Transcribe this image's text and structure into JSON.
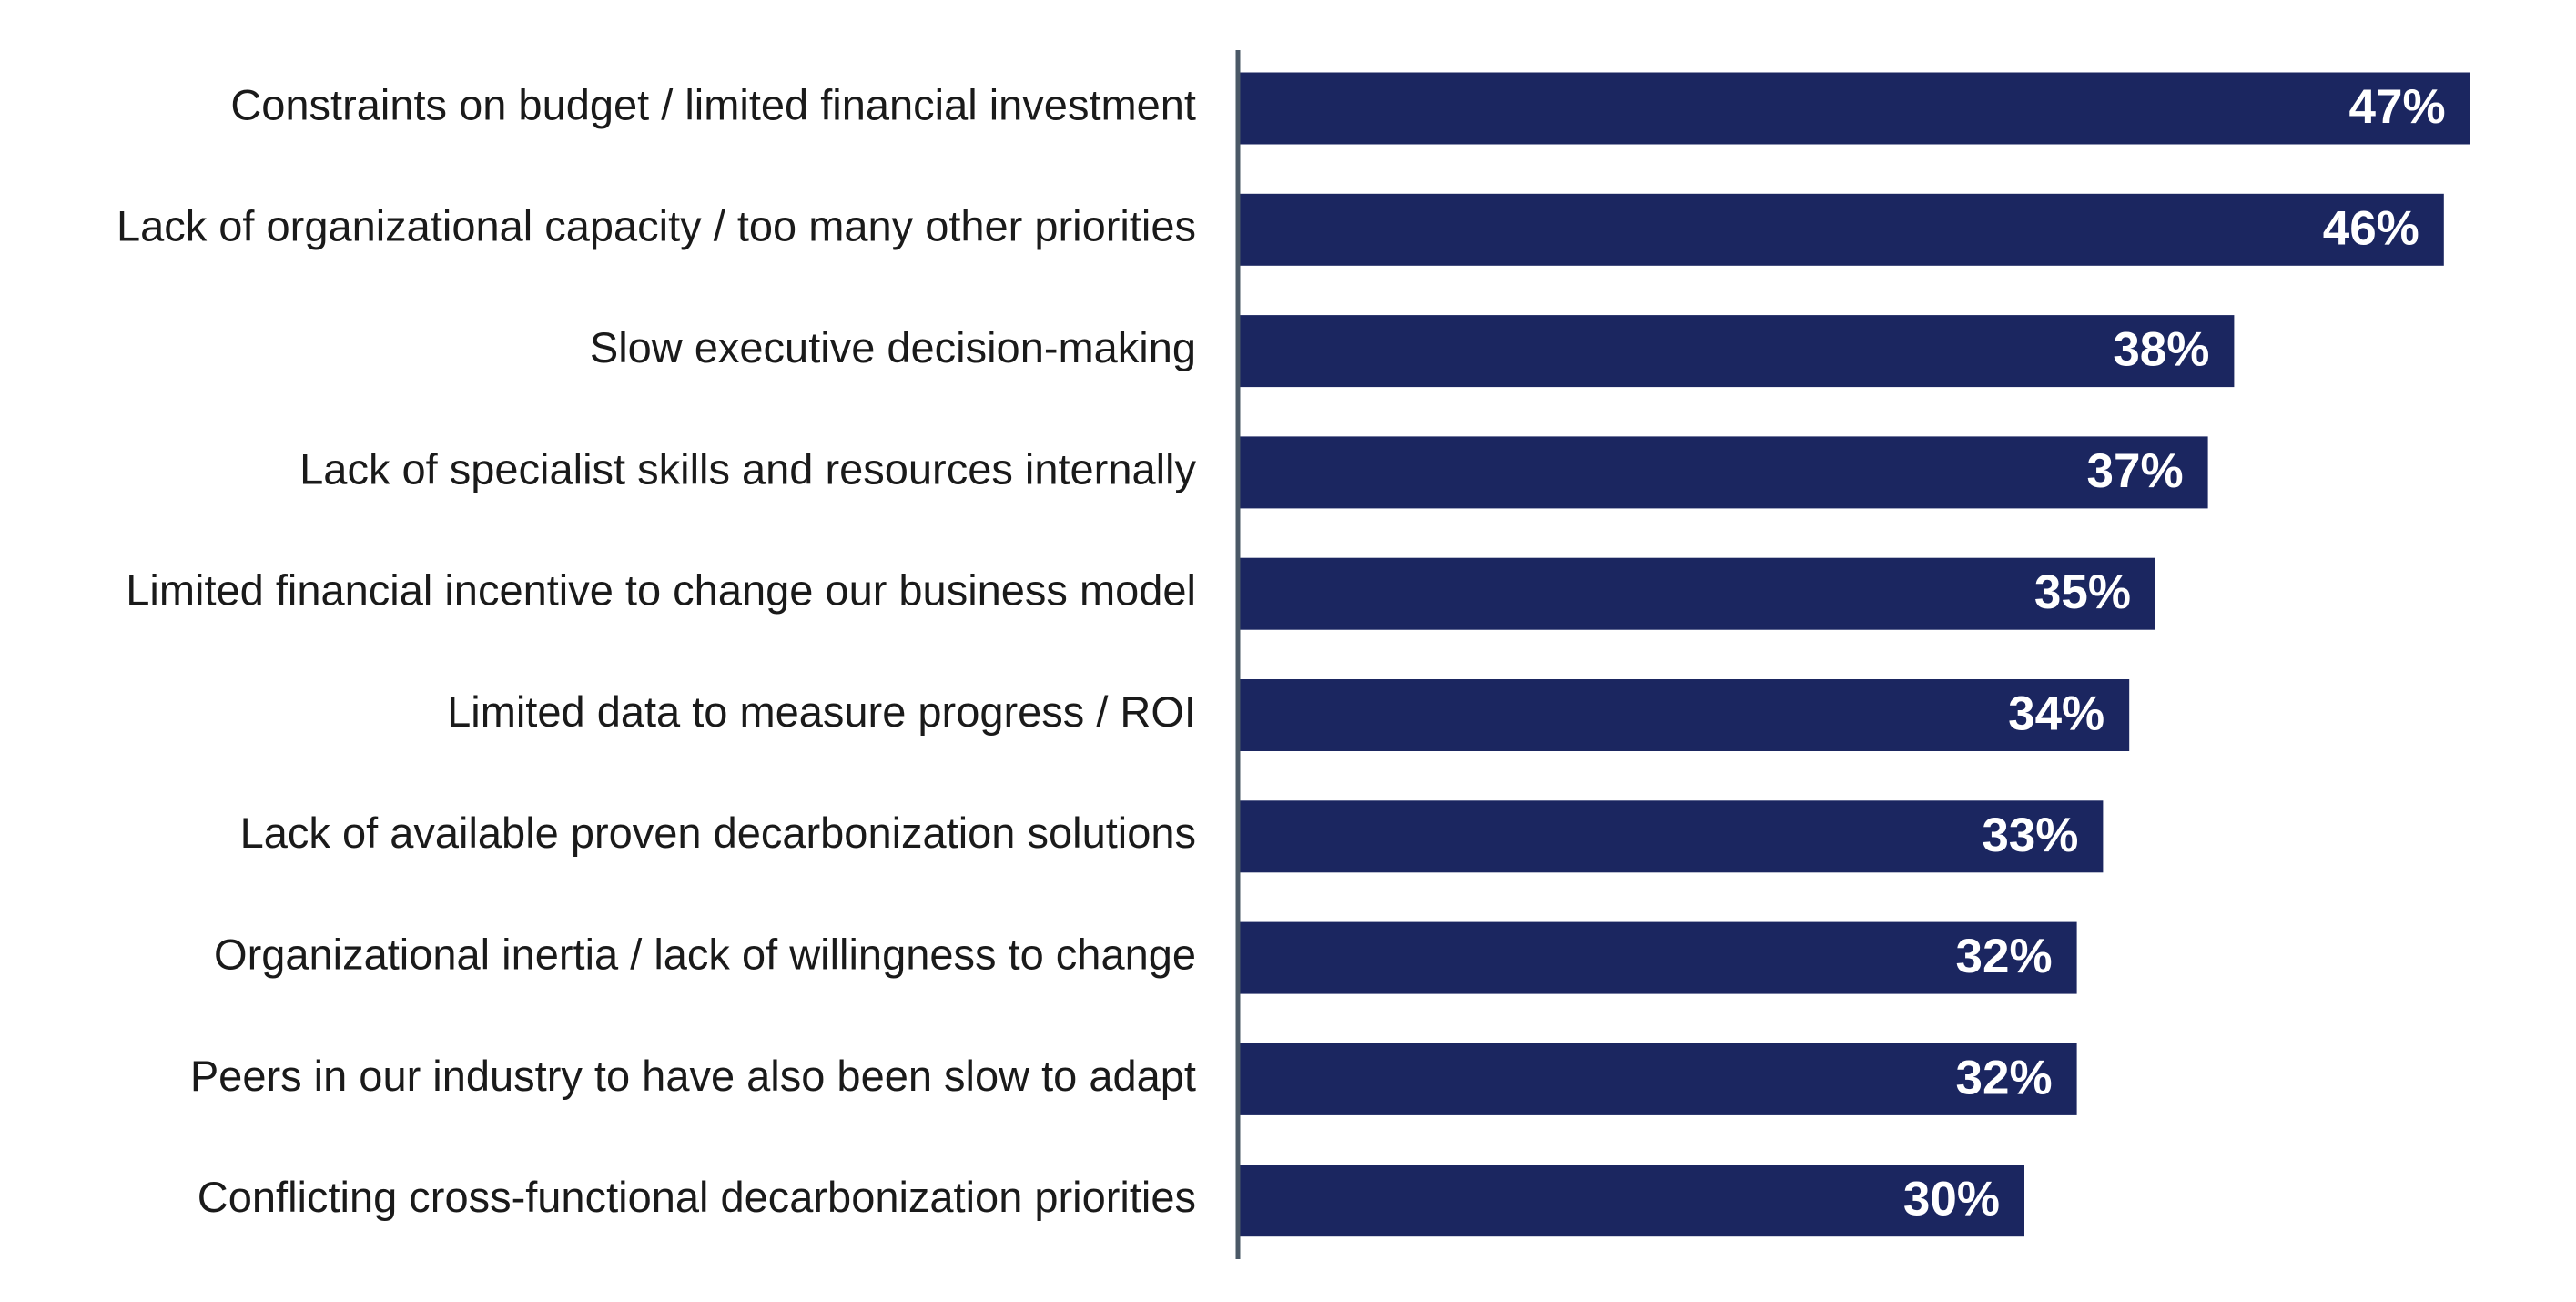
{
  "chart_data": {
    "type": "bar",
    "orientation": "horizontal",
    "categories": [
      "Constraints on budget / limited financial investment",
      "Lack of organizational capacity / too many other priorities",
      "Slow executive decision-making",
      "Lack of specialist skills and resources internally",
      "Limited financial incentive to change our business model",
      "Limited data to measure progress / ROI",
      "Lack of available proven decarbonization solutions",
      "Organizational inertia / lack of willingness to change",
      "Peers in our industry to have also been slow to adapt",
      "Conflicting cross-functional decarbonization priorities"
    ],
    "values": [
      47,
      46,
      38,
      37,
      35,
      34,
      33,
      32,
      32,
      30
    ],
    "value_labels": [
      "47%",
      "46%",
      "38%",
      "37%",
      "35%",
      "34%",
      "33%",
      "32%",
      "32%",
      "30%"
    ],
    "color": "#1b2660"
  }
}
